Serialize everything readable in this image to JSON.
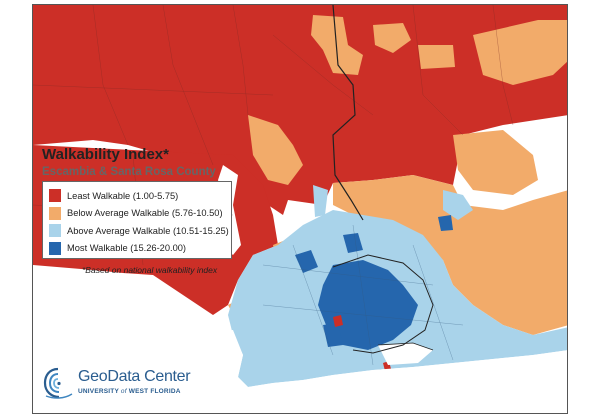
{
  "title": "Walkability Index*",
  "subtitle": "Escambia & Santa Rosa County",
  "legend": [
    {
      "label": "Least Walkable (1.00-5.75)",
      "color": "#cc2f27"
    },
    {
      "label": "Below Average Walkable (5.76-10.50)",
      "color": "#f2ab6a"
    },
    {
      "label": "Above Average Walkable (10.51-15.25)",
      "color": "#a9d3ea"
    },
    {
      "label": "Most Walkable (15.26-20.00)",
      "color": "#2566ad"
    }
  ],
  "footnote": "*Based on national walkability index",
  "logo": {
    "name": "GeoData Center",
    "sub_pre": "UNIVERSITY",
    "sub_of": "of",
    "sub_post": "WEST FLORIDA",
    "icon": "shell-spiral-icon"
  },
  "colors": {
    "least": "#cc2f27",
    "below": "#f2ab6a",
    "above": "#a9d3ea",
    "most": "#2566ad",
    "boundary": "#222222",
    "water": "#ffffff"
  }
}
